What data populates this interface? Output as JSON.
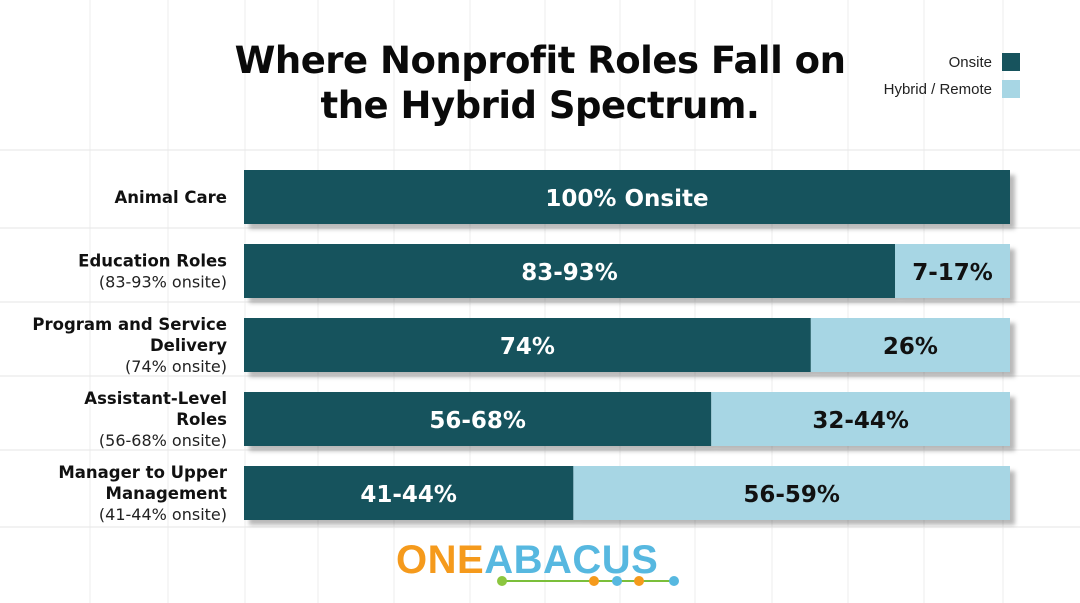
{
  "title": "Where Nonprofit Roles Fall on the Hybrid Spectrum.",
  "legend": [
    {
      "label": "Onsite",
      "color": "#17535d"
    },
    {
      "label": "Hybrid / Remote",
      "color": "#a7d6e4"
    }
  ],
  "chart_data": {
    "type": "bar",
    "orientation": "horizontal",
    "stacked": true,
    "title": "Where Nonprofit Roles Fall on the Hybrid Spectrum.",
    "xlim": [
      0,
      100
    ],
    "grid": true,
    "legend_position": "top-right",
    "categories": [
      {
        "name": "Animal Care",
        "sub": ""
      },
      {
        "name": "Education Roles",
        "sub": "(83-93% onsite)"
      },
      {
        "name": "Program and Service Delivery",
        "sub": "(74% onsite)"
      },
      {
        "name": "Assistant-Level Roles",
        "sub": "(56-68% onsite)"
      },
      {
        "name": "Manager to Upper Management",
        "sub": "(41-44% onsite)"
      }
    ],
    "series": [
      {
        "name": "Onsite",
        "color": "#17535d",
        "values": [
          100,
          85,
          74,
          61,
          43
        ],
        "labels": [
          "100% Onsite",
          "83-93%",
          "74%",
          "56-68%",
          "41-44%"
        ]
      },
      {
        "name": "Hybrid / Remote",
        "color": "#a7d6e4",
        "values": [
          0,
          15,
          26,
          39,
          57
        ],
        "labels": [
          "",
          "7-17%",
          "26%",
          "32-44%",
          "56-59%"
        ]
      }
    ]
  },
  "logo": {
    "part1": "ONE",
    "part2": "ABACUS"
  }
}
